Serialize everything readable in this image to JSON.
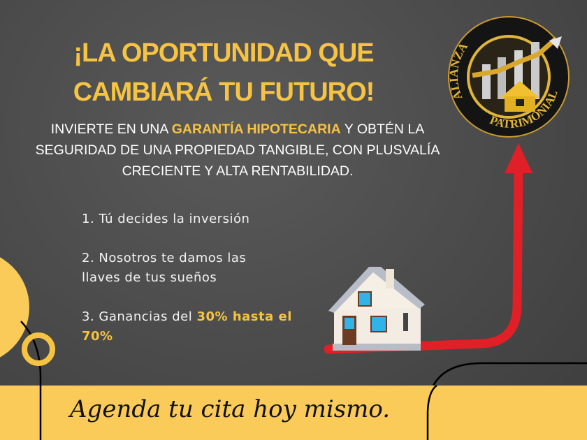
{
  "headline": {
    "line1": "¡LA OPORTUNIDAD QUE",
    "line2": "CAMBIARÁ TU FUTURO!"
  },
  "subheading": {
    "before": "INVIERTE EN UNA ",
    "highlight": "GARANTÍA HIPOTECARIA",
    "after": " Y OBTÉN LA SEGURIDAD DE UNA PROPIEDAD TANGIBLE, CON PLUSVALÍA CRECIENTE Y ALTA RENTABILIDAD."
  },
  "steps": [
    {
      "text": "1. Tú decides la inversión",
      "highlight": ""
    },
    {
      "text": "2. Nosotros te damos las llaves de tus sueños",
      "highlight": ""
    },
    {
      "text": "3. Ganancias del ",
      "highlight": "30% hasta el 70%"
    }
  ],
  "logo": {
    "top_text": "ALIANZA",
    "bottom_text": "PATRIMONIAL"
  },
  "cta": "Agenda tu cita hoy mismo.",
  "colors": {
    "accent": "#f6c342",
    "band": "#fbcb5a",
    "arrow": "#e01f26",
    "background": "#4a4a4a"
  }
}
